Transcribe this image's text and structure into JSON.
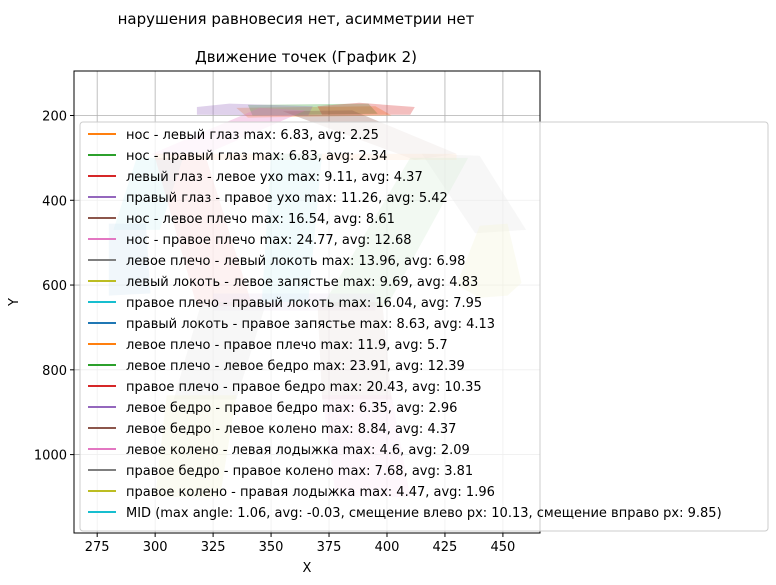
{
  "chart_data": {
    "type": "area",
    "suptitle": "нарушения равновесия нет, асимметрии нет",
    "title": "Движение точек (График 2)",
    "xlabel": "X",
    "ylabel": "Y",
    "xlim": [
      265,
      466
    ],
    "ylim": [
      1185,
      95
    ],
    "y_inverted": true,
    "grid": true,
    "legend_placement": "upper left",
    "xticks": [
      275,
      300,
      325,
      350,
      375,
      400,
      425,
      450
    ],
    "yticks": [
      200,
      400,
      600,
      800,
      1000
    ],
    "series": [
      {
        "name": "нос - левый глаз max: 6.83, avg: 2.25",
        "color": "#ff7f0e",
        "polygon": [
          [
            335,
            182
          ],
          [
            395,
            178
          ],
          [
            402,
            200
          ],
          [
            340,
            205
          ]
        ]
      },
      {
        "name": "нос - правый глаз max: 6.83, avg: 2.34",
        "color": "#2ca02c",
        "polygon": [
          [
            340,
            175
          ],
          [
            392,
            172
          ],
          [
            396,
            196
          ],
          [
            342,
            200
          ]
        ]
      },
      {
        "name": "левый глаз - левое ухо max: 9.11, avg: 4.37",
        "color": "#d62728",
        "polygon": [
          [
            370,
            178
          ],
          [
            388,
            170
          ],
          [
            412,
            180
          ],
          [
            410,
            198
          ],
          [
            372,
            198
          ]
        ]
      },
      {
        "name": "правый глаз - правое ухо max: 11.26, avg: 5.42",
        "color": "#9467bd",
        "polygon": [
          [
            318,
            180
          ],
          [
            332,
            172
          ],
          [
            368,
            178
          ],
          [
            366,
            200
          ],
          [
            318,
            198
          ]
        ]
      },
      {
        "name": "нос - левое плечо max: 16.54, avg: 8.61",
        "color": "#8c564b",
        "polygon": [
          [
            355,
            190
          ],
          [
            385,
            188
          ],
          [
            430,
            290
          ],
          [
            412,
            305
          ]
        ]
      },
      {
        "name": "нос - правое плечо max: 24.77, avg: 12.68",
        "color": "#e377c2",
        "polygon": [
          [
            345,
            182
          ],
          [
            365,
            188
          ],
          [
            318,
            300
          ],
          [
            298,
            292
          ]
        ]
      },
      {
        "name": "левое плечо - левый локоть max: 13.96, avg: 6.98",
        "color": "#7f7f7f",
        "polygon": [
          [
            415,
            290
          ],
          [
            440,
            295
          ],
          [
            460,
            470
          ],
          [
            438,
            478
          ]
        ]
      },
      {
        "name": "левый локоть - левое запястье max: 9.69, avg: 4.83",
        "color": "#bcbd22",
        "polygon": [
          [
            440,
            460
          ],
          [
            452,
            455
          ],
          [
            458,
            595
          ],
          [
            452,
            625
          ],
          [
            440,
            630
          ],
          [
            430,
            600
          ]
        ]
      },
      {
        "name": "правое плечо - правый локоть max: 16.04, avg: 7.95",
        "color": "#17becf",
        "polygon": [
          [
            292,
            300
          ],
          [
            312,
            300
          ],
          [
            302,
            470
          ],
          [
            282,
            470
          ]
        ]
      },
      {
        "name": "правый локоть - правое запястье max: 8.63, avg: 4.13",
        "color": "#1f77b4",
        "polygon": [
          [
            280,
            455
          ],
          [
            296,
            455
          ],
          [
            298,
            620
          ],
          [
            280,
            625
          ]
        ]
      },
      {
        "name": "левое плечо - правое плечо max: 11.9, avg: 5.7",
        "color": "#ff7f0e",
        "polygon": [
          [
            300,
            290
          ],
          [
            430,
            290
          ],
          [
            430,
            305
          ],
          [
            300,
            305
          ]
        ]
      },
      {
        "name": "левое плечо - левое бедро max: 23.91, avg: 12.39",
        "color": "#2ca02c",
        "polygon": [
          [
            410,
            300
          ],
          [
            435,
            300
          ],
          [
            400,
            650
          ],
          [
            372,
            650
          ]
        ]
      },
      {
        "name": "правое плечо - правое бедро max: 20.43, avg: 10.35",
        "color": "#d62728",
        "polygon": [
          [
            300,
            300
          ],
          [
            322,
            300
          ],
          [
            342,
            650
          ],
          [
            318,
            650
          ]
        ]
      },
      {
        "name": "левое бедро - правое бедро max: 6.35, avg: 2.96",
        "color": "#9467bd",
        "polygon": [
          [
            325,
            620
          ],
          [
            395,
            620
          ],
          [
            395,
            660
          ],
          [
            325,
            660
          ]
        ]
      },
      {
        "name": "левое бедро - левое колено max: 8.84, avg: 4.37",
        "color": "#8c564b",
        "polygon": [
          [
            370,
            640
          ],
          [
            398,
            640
          ],
          [
            402,
            870
          ],
          [
            372,
            870
          ]
        ]
      },
      {
        "name": "левое колено - левая лодыжка max: 4.6, avg: 2.09",
        "color": "#e377c2",
        "polygon": [
          [
            372,
            860
          ],
          [
            402,
            860
          ],
          [
            410,
            1100
          ],
          [
            378,
            1100
          ]
        ]
      },
      {
        "name": "правое бедро - правое колено max: 7.68, avg: 3.81",
        "color": "#7f7f7f",
        "polygon": [
          [
            320,
            640
          ],
          [
            348,
            640
          ],
          [
            335,
            870
          ],
          [
            308,
            870
          ]
        ]
      },
      {
        "name": "правое колено - правая лодыжка max: 4.47, avg: 1.96",
        "color": "#bcbd22",
        "polygon": [
          [
            305,
            860
          ],
          [
            335,
            860
          ],
          [
            328,
            1100
          ],
          [
            300,
            1100
          ]
        ]
      },
      {
        "name": "MID (max angle: 1.06, avg: -0.03, смещение влево px: 10.13, смещение вправо px: 9.85)",
        "color": "#17becf",
        "polygon": [
          [
            350,
            290
          ],
          [
            372,
            290
          ],
          [
            366,
            640
          ],
          [
            346,
            640
          ]
        ]
      }
    ]
  }
}
